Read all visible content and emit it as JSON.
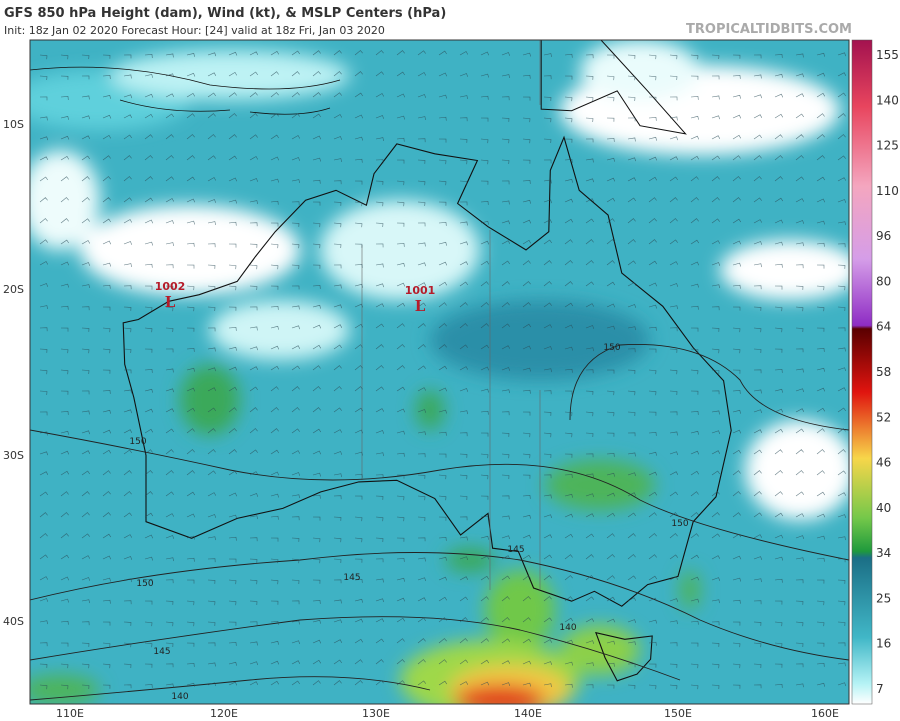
{
  "header": {
    "title": "GFS 850 hPa Height (dam), Wind (kt), & MSLP Centers (hPa)",
    "subtitle": "Init: 18z Jan 02 2020   Forecast Hour: [24]   valid at 18z Fri, Jan 03 2020",
    "watermark": "TROPICALTIDBITS.COM"
  },
  "axes": {
    "latitude_labels": [
      "10S",
      "20S",
      "30S",
      "40S"
    ],
    "longitude_labels": [
      "110E",
      "120E",
      "130E",
      "140E",
      "150E",
      "160E"
    ]
  },
  "colorbar": {
    "labels": [
      155,
      140,
      125,
      110,
      96,
      80,
      64,
      58,
      52,
      46,
      40,
      34,
      25,
      16,
      7
    ]
  },
  "pressure_centers": [
    {
      "pressure": "1002",
      "symbol": "L"
    },
    {
      "pressure": "1001",
      "symbol": "L"
    }
  ],
  "contour_labels": [
    "150",
    "150",
    "150",
    "150",
    "145",
    "145",
    "145",
    "140",
    "140"
  ]
}
